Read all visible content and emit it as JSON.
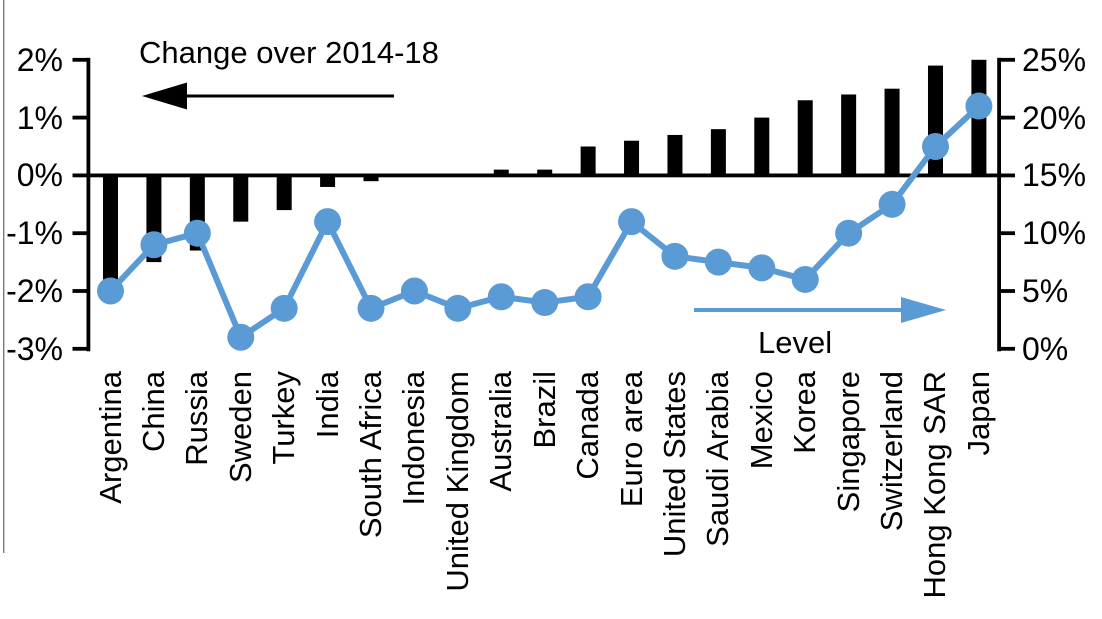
{
  "chart_data": {
    "type": "combo-bar-line",
    "value_unit": "%",
    "categories": [
      "Argentina",
      "China",
      "Russia",
      "Sweden",
      "Turkey",
      "India",
      "South Africa",
      "Indonesia",
      "United Kingdom",
      "Australia",
      "Brazil",
      "Canada",
      "Euro area",
      "United States",
      "Saudi Arabia",
      "Mexico",
      "Korea",
      "Singapore",
      "Switzerland",
      "Hong Kong SAR",
      "Japan"
    ],
    "series": [
      {
        "name": "Change over 2014-18",
        "type": "bar",
        "axis": "left",
        "color": "#000000",
        "values": [
          -1.8,
          -1.5,
          -1.3,
          -0.8,
          -0.6,
          -0.2,
          -0.1,
          0,
          0,
          0.1,
          0.1,
          0.5,
          0.6,
          0.7,
          0.8,
          1.0,
          1.3,
          1.4,
          1.5,
          1.9,
          2.0
        ]
      },
      {
        "name": "Level",
        "type": "line",
        "axis": "right",
        "color": "#5B9BD5",
        "values": [
          5,
          9,
          10,
          1,
          3.5,
          11,
          3.5,
          5,
          3.5,
          4.5,
          4,
          4.5,
          11,
          8,
          7.5,
          7,
          6,
          10,
          12.5,
          17.5,
          21
        ]
      }
    ],
    "left_axis": {
      "min": -3,
      "max": 2,
      "step": 1,
      "tick_labels": [
        "2%",
        "1%",
        "0%",
        "-1%",
        "-2%",
        "-3%"
      ]
    },
    "right_axis": {
      "min": 0,
      "max": 25,
      "step": 5,
      "tick_labels": [
        "25%",
        "20%",
        "15%",
        "10%",
        "5%",
        "0%"
      ]
    },
    "annotations": {
      "bar_label": "Change over 2014-18",
      "bar_arrow_direction": "left",
      "line_label": "Level",
      "line_arrow_direction": "right"
    },
    "grid": "off",
    "legend_position": "in-plot annotations"
  }
}
